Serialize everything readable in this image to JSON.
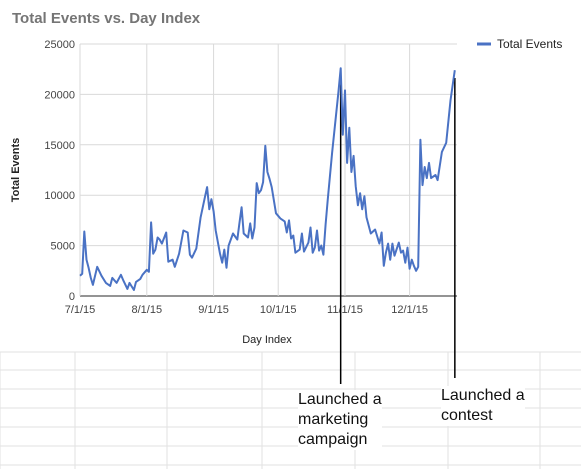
{
  "chart_data": {
    "type": "line",
    "title": "Total Events vs. Day Index",
    "xlabel": "Day Index",
    "ylabel": "Total Events",
    "x_ticks": [
      "7/1/15",
      "8/1/15",
      "9/1/15",
      "10/1/15",
      "11/1/15",
      "12/1/15"
    ],
    "y_ticks": [
      "0",
      "5000",
      "10000",
      "15000",
      "20000",
      "25000"
    ],
    "xlim": [
      "2015-07-01",
      "2015-12-23"
    ],
    "ylim": [
      0,
      25000
    ],
    "grid": true,
    "legend": "top-right",
    "series": [
      {
        "name": "Total Events",
        "color": "#4a72c4",
        "points": [
          [
            "2015-07-01",
            2000
          ],
          [
            "2015-07-02",
            2200
          ],
          [
            "2015-07-03",
            6400
          ],
          [
            "2015-07-04",
            3600
          ],
          [
            "2015-07-05",
            2800
          ],
          [
            "2015-07-06",
            1800
          ],
          [
            "2015-07-07",
            1100
          ],
          [
            "2015-07-09",
            2900
          ],
          [
            "2015-07-11",
            2000
          ],
          [
            "2015-07-13",
            1300
          ],
          [
            "2015-07-15",
            1000
          ],
          [
            "2015-07-16",
            1800
          ],
          [
            "2015-07-18",
            1300
          ],
          [
            "2015-07-20",
            2100
          ],
          [
            "2015-07-21",
            1600
          ],
          [
            "2015-07-23",
            700
          ],
          [
            "2015-07-24",
            1300
          ],
          [
            "2015-07-26",
            600
          ],
          [
            "2015-07-27",
            1400
          ],
          [
            "2015-07-29",
            1700
          ],
          [
            "2015-07-30",
            2100
          ],
          [
            "2015-08-01",
            2600
          ],
          [
            "2015-08-02",
            2400
          ],
          [
            "2015-08-03",
            7300
          ],
          [
            "2015-08-04",
            4200
          ],
          [
            "2015-08-05",
            4600
          ],
          [
            "2015-08-06",
            5800
          ],
          [
            "2015-08-07",
            5600
          ],
          [
            "2015-08-08",
            5200
          ],
          [
            "2015-08-10",
            6300
          ],
          [
            "2015-08-11",
            3400
          ],
          [
            "2015-08-13",
            3600
          ],
          [
            "2015-08-14",
            2900
          ],
          [
            "2015-08-16",
            4200
          ],
          [
            "2015-08-18",
            6500
          ],
          [
            "2015-08-20",
            6300
          ],
          [
            "2015-08-21",
            4100
          ],
          [
            "2015-08-22",
            3800
          ],
          [
            "2015-08-24",
            4700
          ],
          [
            "2015-08-26",
            7800
          ],
          [
            "2015-08-28",
            9800
          ],
          [
            "2015-08-29",
            10800
          ],
          [
            "2015-08-30",
            8600
          ],
          [
            "2015-08-31",
            9600
          ],
          [
            "2015-09-01",
            8400
          ],
          [
            "2015-09-02",
            6500
          ],
          [
            "2015-09-04",
            4200
          ],
          [
            "2015-09-05",
            3300
          ],
          [
            "2015-09-06",
            4600
          ],
          [
            "2015-09-07",
            2800
          ],
          [
            "2015-09-08",
            5000
          ],
          [
            "2015-09-10",
            6200
          ],
          [
            "2015-09-12",
            5600
          ],
          [
            "2015-09-13",
            7200
          ],
          [
            "2015-09-14",
            8800
          ],
          [
            "2015-09-15",
            6200
          ],
          [
            "2015-09-17",
            5800
          ],
          [
            "2015-09-18",
            7200
          ],
          [
            "2015-09-19",
            5700
          ],
          [
            "2015-09-20",
            6800
          ],
          [
            "2015-09-21",
            11200
          ],
          [
            "2015-09-22",
            10200
          ],
          [
            "2015-09-23",
            10500
          ],
          [
            "2015-09-24",
            11300
          ],
          [
            "2015-09-25",
            14900
          ],
          [
            "2015-09-26",
            12300
          ],
          [
            "2015-09-27",
            11600
          ],
          [
            "2015-09-28",
            10800
          ],
          [
            "2015-09-30",
            8200
          ],
          [
            "2015-10-02",
            7700
          ],
          [
            "2015-10-04",
            7400
          ],
          [
            "2015-10-05",
            6300
          ],
          [
            "2015-10-06",
            7500
          ],
          [
            "2015-10-07",
            5700
          ],
          [
            "2015-10-08",
            6000
          ],
          [
            "2015-10-09",
            4300
          ],
          [
            "2015-10-11",
            4600
          ],
          [
            "2015-10-12",
            6200
          ],
          [
            "2015-10-13",
            4400
          ],
          [
            "2015-10-15",
            5300
          ],
          [
            "2015-10-16",
            6800
          ],
          [
            "2015-10-17",
            4300
          ],
          [
            "2015-10-18",
            4800
          ],
          [
            "2015-10-19",
            6500
          ],
          [
            "2015-10-20",
            4500
          ],
          [
            "2015-10-21",
            5000
          ],
          [
            "2015-10-22",
            4100
          ],
          [
            "2015-10-23",
            7100
          ],
          [
            "2015-10-24",
            9500
          ],
          [
            "2015-10-26",
            14200
          ],
          [
            "2015-10-28",
            18300
          ],
          [
            "2015-10-29",
            20300
          ],
          [
            "2015-10-30",
            22600
          ],
          [
            "2015-10-31",
            16000
          ],
          [
            "2015-11-01",
            20400
          ],
          [
            "2015-11-02",
            13200
          ],
          [
            "2015-11-03",
            16700
          ],
          [
            "2015-11-04",
            12300
          ],
          [
            "2015-11-05",
            13900
          ],
          [
            "2015-11-06",
            10900
          ],
          [
            "2015-11-07",
            9000
          ],
          [
            "2015-11-08",
            10200
          ],
          [
            "2015-11-09",
            8600
          ],
          [
            "2015-11-10",
            9900
          ],
          [
            "2015-11-11",
            7800
          ],
          [
            "2015-11-13",
            6200
          ],
          [
            "2015-11-15",
            6600
          ],
          [
            "2015-11-17",
            5200
          ],
          [
            "2015-11-18",
            6300
          ],
          [
            "2015-11-19",
            3000
          ],
          [
            "2015-11-20",
            4300
          ],
          [
            "2015-11-21",
            5200
          ],
          [
            "2015-11-22",
            3600
          ],
          [
            "2015-11-23",
            5200
          ],
          [
            "2015-11-24",
            4000
          ],
          [
            "2015-11-26",
            5300
          ],
          [
            "2015-11-27",
            4300
          ],
          [
            "2015-11-28",
            4500
          ],
          [
            "2015-11-29",
            3300
          ],
          [
            "2015-11-30",
            4800
          ],
          [
            "2015-12-01",
            2700
          ],
          [
            "2015-12-02",
            3600
          ],
          [
            "2015-12-03",
            3000
          ],
          [
            "2015-12-04",
            2500
          ],
          [
            "2015-12-05",
            2900
          ],
          [
            "2015-12-06",
            15500
          ],
          [
            "2015-12-07",
            11000
          ],
          [
            "2015-12-08",
            12800
          ],
          [
            "2015-12-09",
            11700
          ],
          [
            "2015-12-10",
            13200
          ],
          [
            "2015-12-11",
            11700
          ],
          [
            "2015-12-13",
            12000
          ],
          [
            "2015-12-14",
            11500
          ],
          [
            "2015-12-16",
            14300
          ],
          [
            "2015-12-18",
            15200
          ],
          [
            "2015-12-20",
            19400
          ],
          [
            "2015-12-22",
            22400
          ]
        ]
      }
    ],
    "annotations": [
      {
        "date": "2015-10-30",
        "text": [
          "Launched a",
          "marketing",
          "campaign"
        ]
      },
      {
        "date": "2015-12-22",
        "text": [
          "Launched a",
          "contest"
        ]
      }
    ]
  }
}
